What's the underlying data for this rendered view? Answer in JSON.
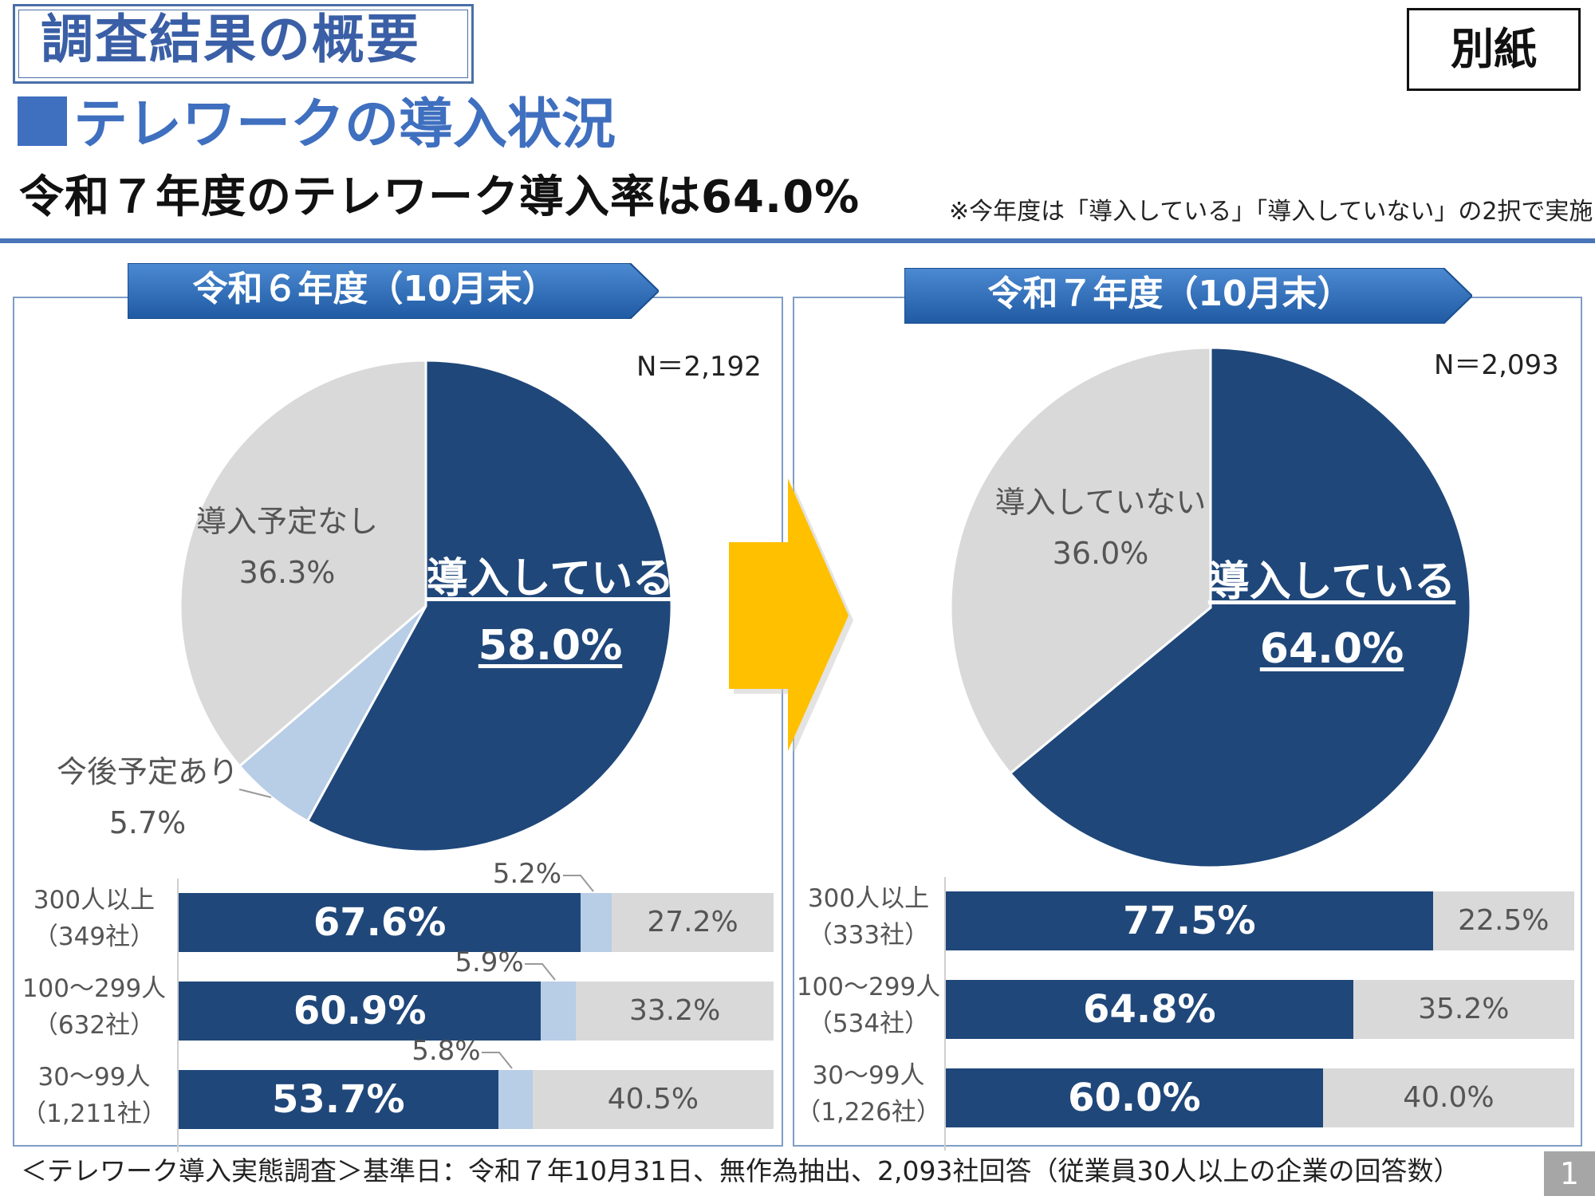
{
  "header": {
    "title": "調査結果の概要",
    "badge": "別紙",
    "section": "テレワークの導入状況",
    "headline": "令和７年度のテレワーク導入率は64.0%",
    "note": "※今年度は「導入している」「導入していない」の2択で実施"
  },
  "colors": {
    "yes": "#1f477a",
    "planned": "#b8cde6",
    "no": "#d9d9d9",
    "accent": "#3f6fbf",
    "arrow": "#ffc000"
  },
  "icons": {
    "transition_arrow": "arrow-right-icon"
  },
  "chart_data": [
    {
      "type": "pie",
      "panel_title": "令和６年度（10月末）",
      "n_label": "N＝2,192",
      "slices": [
        {
          "label": "導入している",
          "value": 58.0,
          "value_label": "58.0%"
        },
        {
          "label": "今後予定あり",
          "value": 5.7,
          "value_label": "5.7%"
        },
        {
          "label": "導入予定なし",
          "value": 36.3,
          "value_label": "36.3%"
        }
      ]
    },
    {
      "type": "pie",
      "panel_title": "令和７年度（10月末）",
      "n_label": "N＝2,093",
      "slices": [
        {
          "label": "導入している",
          "value": 64.0,
          "value_label": "64.0%"
        },
        {
          "label": "導入していない",
          "value": 36.0,
          "value_label": "36.0%"
        }
      ]
    },
    {
      "type": "bar",
      "stacked": true,
      "orientation": "horizontal",
      "categories": [
        {
          "line1": "300人以上",
          "line2": "（349社）"
        },
        {
          "line1": "100～299人",
          "line2": "（632社）"
        },
        {
          "line1": "30～99人",
          "line2": "（1,211社）"
        }
      ],
      "series": [
        {
          "values": [
            67.6,
            60.9,
            53.7
          ],
          "labels": [
            "67.6%",
            "60.9%",
            "53.7%"
          ]
        },
        {
          "values": [
            5.2,
            5.9,
            5.8
          ],
          "labels": [
            "5.2%",
            "5.9%",
            "5.8%"
          ]
        },
        {
          "values": [
            27.2,
            33.2,
            40.5
          ],
          "labels": [
            "27.2%",
            "33.2%",
            "40.5%"
          ]
        }
      ],
      "xlim": [
        0,
        100
      ]
    },
    {
      "type": "bar",
      "stacked": true,
      "orientation": "horizontal",
      "categories": [
        {
          "line1": "300人以上",
          "line2": "（333社）"
        },
        {
          "line1": "100～299人",
          "line2": "（534社）"
        },
        {
          "line1": "30～99人",
          "line2": "（1,226社）"
        }
      ],
      "series": [
        {
          "values": [
            77.5,
            64.8,
            60.0
          ],
          "labels": [
            "77.5%",
            "64.8%",
            "60.0%"
          ]
        },
        {
          "values": [
            22.5,
            35.2,
            40.0
          ],
          "labels": [
            "22.5%",
            "35.2%",
            "40.0%"
          ]
        }
      ],
      "xlim": [
        0,
        100
      ]
    }
  ],
  "footer": "＜テレワーク導入実態調査＞基準日：令和７年10月31日、無作為抽出、2,093社回答（従業員30人以上の企業の回答数）",
  "page_number": "1"
}
